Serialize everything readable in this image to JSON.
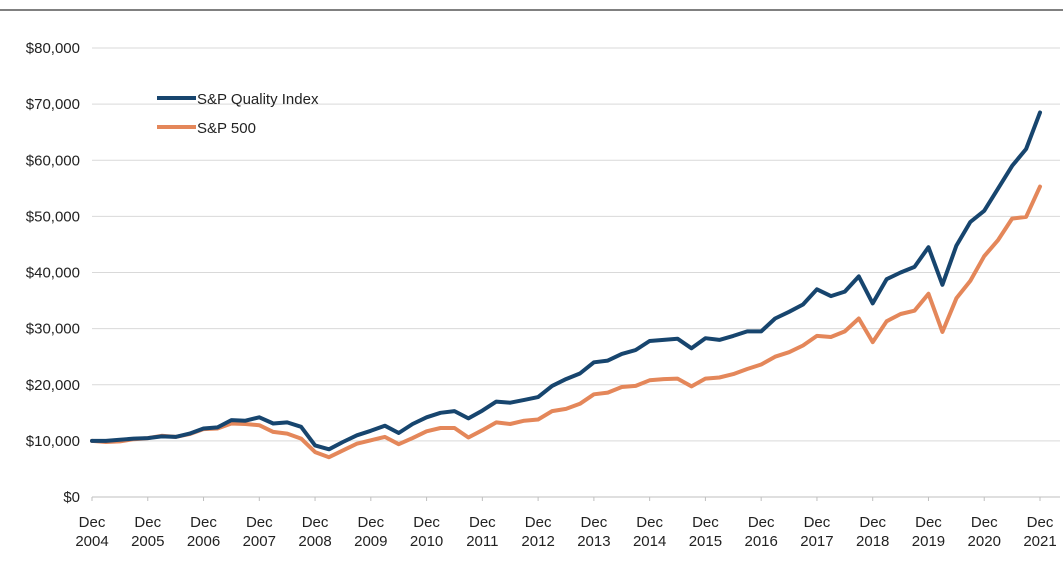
{
  "chart_data": {
    "type": "line",
    "x": [
      "2004-12",
      "2005-03",
      "2005-06",
      "2005-09",
      "2005-12",
      "2006-03",
      "2006-06",
      "2006-09",
      "2006-12",
      "2007-03",
      "2007-06",
      "2007-09",
      "2007-12",
      "2008-03",
      "2008-06",
      "2008-09",
      "2008-12",
      "2009-03",
      "2009-06",
      "2009-09",
      "2009-12",
      "2010-03",
      "2010-06",
      "2010-09",
      "2010-12",
      "2011-03",
      "2011-06",
      "2011-09",
      "2011-12",
      "2012-03",
      "2012-06",
      "2012-09",
      "2012-12",
      "2013-03",
      "2013-06",
      "2013-09",
      "2013-12",
      "2014-03",
      "2014-06",
      "2014-09",
      "2014-12",
      "2015-03",
      "2015-06",
      "2015-09",
      "2015-12",
      "2016-03",
      "2016-06",
      "2016-09",
      "2016-12",
      "2017-03",
      "2017-06",
      "2017-09",
      "2017-12",
      "2018-03",
      "2018-06",
      "2018-09",
      "2018-12",
      "2019-03",
      "2019-06",
      "2019-09",
      "2019-12",
      "2020-03",
      "2020-06",
      "2020-09",
      "2020-12",
      "2021-03",
      "2021-06",
      "2021-09",
      "2021-12"
    ],
    "series": [
      {
        "name": "S&P Quality Index",
        "color": "#17456e",
        "values": [
          10000,
          10000,
          10200,
          10400,
          10500,
          10800,
          10700,
          11300,
          12200,
          12400,
          13700,
          13600,
          14200,
          13100,
          13300,
          12500,
          9200,
          8500,
          9800,
          11000,
          11800,
          12700,
          11400,
          13000,
          14200,
          15000,
          15300,
          14000,
          15400,
          17000,
          16800,
          17300,
          17800,
          19800,
          21000,
          22000,
          24000,
          24300,
          25500,
          26200,
          27800,
          28000,
          28200,
          26500,
          28300,
          28000,
          28700,
          29500,
          29500,
          31800,
          33000,
          34300,
          37000,
          35800,
          36600,
          39300,
          34500,
          38800,
          40000,
          41000,
          44500,
          37800,
          44800,
          49000,
          51000,
          55000,
          59000,
          62000,
          68500
        ]
      },
      {
        "name": "S&P 500",
        "color": "#e4875a",
        "values": [
          10000,
          9800,
          9900,
          10300,
          10500,
          10900,
          10700,
          11200,
          12100,
          12200,
          13100,
          13000,
          12800,
          11600,
          11300,
          10400,
          8000,
          7100,
          8300,
          9500,
          10100,
          10700,
          9400,
          10500,
          11700,
          12300,
          12300,
          10600,
          11900,
          13300,
          13000,
          13600,
          13800,
          15300,
          15700,
          16600,
          18300,
          18600,
          19600,
          19800,
          20800,
          21000,
          21100,
          19700,
          21100,
          21300,
          21900,
          22800,
          23600,
          25000,
          25800,
          27000,
          28700,
          28500,
          29500,
          31800,
          27600,
          31300,
          32600,
          33200,
          36200,
          29400,
          35400,
          38500,
          42900,
          45800,
          49600,
          49900,
          55300
        ]
      }
    ],
    "ylim": [
      0,
      80000
    ],
    "yticks": [
      {
        "value": 0,
        "label": "$0"
      },
      {
        "value": 10000,
        "label": "$10,000"
      },
      {
        "value": 20000,
        "label": "$20,000"
      },
      {
        "value": 30000,
        "label": "$30,000"
      },
      {
        "value": 40000,
        "label": "$40,000"
      },
      {
        "value": 50000,
        "label": "$50,000"
      },
      {
        "value": 60000,
        "label": "$60,000"
      },
      {
        "value": 70000,
        "label": "$70,000"
      },
      {
        "value": 80000,
        "label": "$80,000"
      }
    ],
    "xlim": [
      "2004-12",
      "2021-12"
    ],
    "xticks": [
      {
        "value": "2004-12",
        "label": "Dec 2004"
      },
      {
        "value": "2005-12",
        "label": "Dec 2005"
      },
      {
        "value": "2006-12",
        "label": "Dec 2006"
      },
      {
        "value": "2007-12",
        "label": "Dec 2007"
      },
      {
        "value": "2008-12",
        "label": "Dec 2008"
      },
      {
        "value": "2009-12",
        "label": "Dec 2009"
      },
      {
        "value": "2010-12",
        "label": "Dec 2010"
      },
      {
        "value": "2011-12",
        "label": "Dec 2011"
      },
      {
        "value": "2012-12",
        "label": "Dec 2012"
      },
      {
        "value": "2013-12",
        "label": "Dec 2013"
      },
      {
        "value": "2014-12",
        "label": "Dec 2014"
      },
      {
        "value": "2015-12",
        "label": "Dec 2015"
      },
      {
        "value": "2016-12",
        "label": "Dec 2016"
      },
      {
        "value": "2017-12",
        "label": "Dec 2017"
      },
      {
        "value": "2018-12",
        "label": "Dec 2018"
      },
      {
        "value": "2019-12",
        "label": "Dec 2019"
      },
      {
        "value": "2020-12",
        "label": "Dec 2020"
      },
      {
        "value": "2021-12",
        "label": "Dec 2021"
      }
    ],
    "grid": true,
    "legend": "upper left"
  }
}
